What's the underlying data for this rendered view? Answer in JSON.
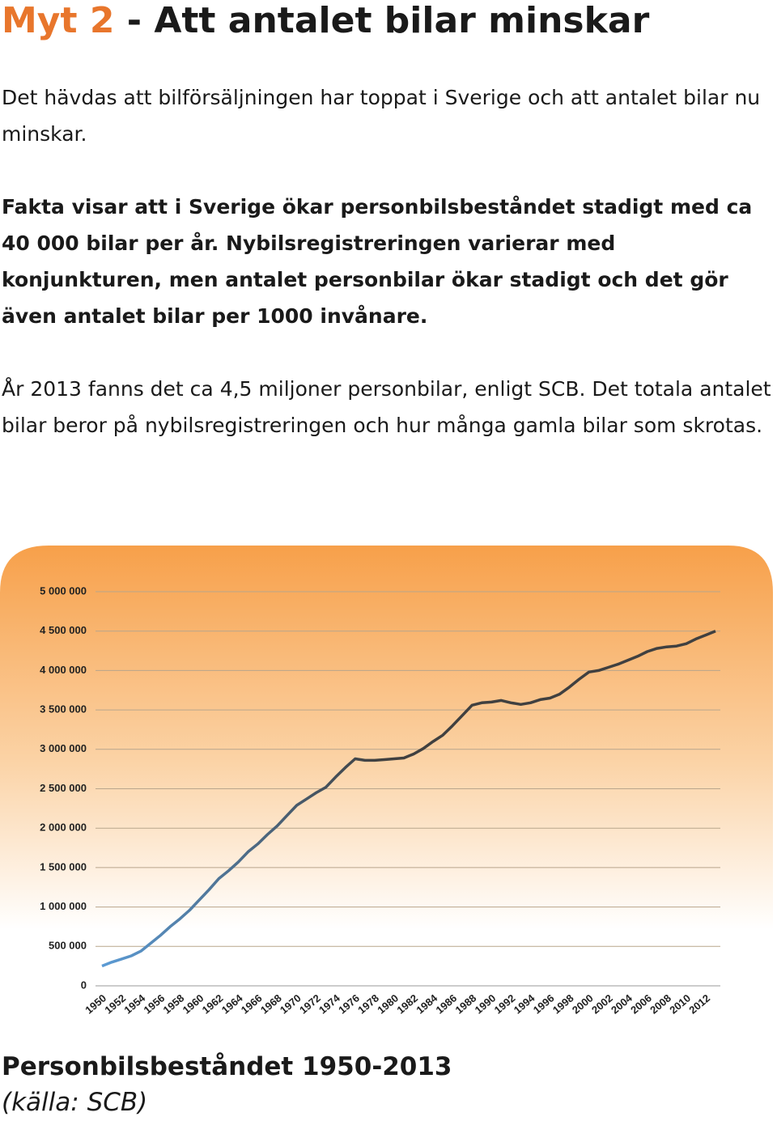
{
  "header": {
    "title_highlight": "Myt 2",
    "title_rest": "- Att antalet bilar minskar"
  },
  "paragraphs": [
    "Det hävdas att bilförsäljningen har toppat i Sverige och att antalet bilar nu minskar.",
    "Fakta visar att i Sverige ökar personbilsbeståndet stadigt med ca 40 000 bilar per år. Nybilsregistreringen varierar med konjunkturen, men antalet personbilar ökar stadigt och det gör även antalet bilar per 1000 invånare.",
    "År 2013 fanns det ca 4,5 miljoner personbilar, enligt SCB. Det totala antalet bilar beror på nybilsregistreringen och hur många gamla bilar som skrotas."
  ],
  "chart_data": {
    "type": "line",
    "categories": [
      "1950",
      null,
      "1952",
      null,
      "1954",
      null,
      "1956",
      null,
      "1958",
      null,
      "1960",
      null,
      "1962",
      null,
      "1964",
      null,
      "1966",
      null,
      "1968",
      null,
      "1970",
      null,
      "1972",
      null,
      "1974",
      null,
      "1976",
      null,
      "1978",
      null,
      "1980",
      null,
      "1982",
      null,
      "1984",
      null,
      "1986",
      null,
      "1988",
      null,
      "1990",
      null,
      "1992",
      null,
      "1994",
      null,
      "1996",
      null,
      "1998",
      null,
      "2000",
      null,
      "2002",
      null,
      "2004",
      null,
      "2006",
      null,
      "2008",
      null,
      "2010",
      null,
      "2012",
      null
    ],
    "values": [
      252000,
      300000,
      340000,
      380000,
      440000,
      540000,
      640000,
      750000,
      850000,
      960000,
      1090000,
      1220000,
      1360000,
      1460000,
      1570000,
      1700000,
      1800000,
      1920000,
      2030000,
      2160000,
      2290000,
      2370000,
      2450000,
      2520000,
      2650000,
      2770000,
      2880000,
      2860000,
      2860000,
      2870000,
      2880000,
      2890000,
      2940000,
      3010000,
      3100000,
      3180000,
      3300000,
      3430000,
      3560000,
      3590000,
      3600000,
      3620000,
      3590000,
      3570000,
      3590000,
      3630000,
      3650000,
      3700000,
      3790000,
      3890000,
      3980000,
      4000000,
      4040000,
      4080000,
      4130000,
      4180000,
      4240000,
      4280000,
      4300000,
      4310000,
      4340000,
      4400000,
      4450000,
      4500000
    ],
    "color_start": "#5b9bd5",
    "color_end": "#404040",
    "ylim": [
      0,
      5000000
    ],
    "yticks": [
      0,
      {
        "value": 500000,
        "label": "500 000"
      },
      {
        "value": 1000000,
        "label": "1 000 000"
      },
      {
        "value": 1500000,
        "label": "1 500 000"
      },
      {
        "value": 2000000,
        "label": "2 000 000"
      },
      {
        "value": 2500000,
        "label": "2 500 000"
      },
      {
        "value": 3000000,
        "label": "3 000 000"
      },
      {
        "value": 3500000,
        "label": "3 500 000"
      },
      {
        "value": 4000000,
        "label": "4 000 000"
      },
      {
        "value": 4500000,
        "label": "4 500 000"
      },
      {
        "value": 5000000,
        "label": "5 000 000"
      }
    ],
    "grid": true
  },
  "caption": {
    "title": "Personbilsbeståndet 1950-2013",
    "source": "(källa: SCB)"
  }
}
